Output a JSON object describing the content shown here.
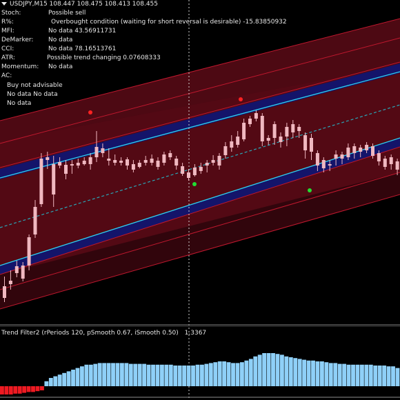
{
  "window": {
    "symbol_line": "USDJPY,M15  108.447 108.475 108.413 108.455"
  },
  "signals": [
    {
      "label": "Stoch:",
      "value": "Possible sell"
    },
    {
      "label": "R%:",
      "value": "Overbought condition (waiting for short reversal is desirable) -15.83850932"
    },
    {
      "label": "MFI:",
      "value": "No data 43.56911731"
    },
    {
      "label": "DeMarker:",
      "value": "No data"
    },
    {
      "label": "CCI:",
      "value": "No data 78.16513761"
    },
    {
      "label": "ATR:",
      "value": "Possible trend changing 0.07608333"
    },
    {
      "label": "Momentum:",
      "value": "No data"
    },
    {
      "label": "AC:",
      "value": ""
    }
  ],
  "ac_lines": [
    "Buy not advisable",
    "No data No data",
    "No data"
  ],
  "indicator": {
    "label": "Trend Filter2  (rPeriods 120, pSmooth 0.67, iSmooth 0.50)",
    "value": "1.3367"
  },
  "colors": {
    "background": "#000000",
    "bull": "#3aa8e8",
    "bear": "#f0b8c0",
    "channel_outer": "#5a0a16",
    "channel_inner": "#14146a",
    "channel_line_red": "#c0182e",
    "channel_line_cyan": "#2fd2f0",
    "mid_line": "#2aa8b8",
    "hist_pos": "#8fd0f8",
    "hist_neg": "#ee1a22",
    "dot_red": "#ff2222",
    "dot_green": "#22dd33"
  },
  "chart_data": {
    "type": "candlestick",
    "series": [
      {
        "name": "",
        "points": [
          [
            415,
            438,
            401,
            432
          ],
          [
            407,
            420,
            392,
            412
          ],
          [
            386,
            402,
            378,
            396
          ],
          [
            385,
            408,
            380,
            404
          ],
          [
            344,
            392,
            340,
            385
          ],
          [
            300,
            345,
            290,
            340
          ],
          [
            230,
            300,
            222,
            296
          ],
          [
            228,
            245,
            220,
            232
          ],
          [
            238,
            300,
            226,
            282
          ],
          [
            235,
            244,
            228,
            240
          ],
          [
            239,
            260,
            232,
            252
          ],
          [
            238,
            252,
            232,
            240
          ],
          [
            236,
            244,
            230,
            240
          ],
          [
            233,
            240,
            228,
            238
          ],
          [
            228,
            246,
            222,
            238
          ],
          [
            213,
            235,
            190,
            228
          ],
          [
            215,
            228,
            208,
            222
          ],
          [
            230,
            240,
            215,
            233
          ],
          [
            232,
            240,
            224,
            236
          ],
          [
            233,
            240,
            228,
            236
          ],
          [
            231,
            246,
            228,
            240
          ],
          [
            238,
            250,
            232,
            246
          ],
          [
            236,
            244,
            232,
            242
          ],
          [
            232,
            240,
            226,
            236
          ],
          [
            230,
            240,
            224,
            236
          ],
          [
            233,
            246,
            228,
            242
          ],
          [
            224,
            240,
            220,
            236
          ],
          [
            222,
            232,
            218,
            228
          ],
          [
            230,
            246,
            226,
            240
          ],
          [
            241,
            255,
            236,
            252
          ],
          [
            250,
            262,
            245,
            258
          ],
          [
            243,
            256,
            238,
            254
          ],
          [
            242,
            252,
            236,
            248
          ],
          [
            236,
            250,
            232,
            240
          ],
          [
            232,
            240,
            225,
            236
          ],
          [
            226,
            246,
            222,
            240
          ],
          [
            212,
            230,
            206,
            225
          ],
          [
            205,
            220,
            196,
            214
          ],
          [
            198,
            214,
            190,
            210
          ],
          [
            178,
            205,
            172,
            202
          ],
          [
            172,
            184,
            168,
            180
          ],
          [
            164,
            176,
            160,
            172
          ],
          [
            168,
            212,
            164,
            205
          ],
          [
            200,
            210,
            196,
            204
          ],
          [
            180,
            210,
            176,
            200
          ],
          [
            198,
            214,
            192,
            206
          ],
          [
            184,
            212,
            178,
            198
          ],
          [
            180,
            200,
            174,
            192
          ],
          [
            184,
            200,
            180,
            190
          ],
          [
            196,
            230,
            192,
            218
          ],
          [
            200,
            232,
            194,
            220
          ],
          [
            222,
            248,
            218,
            240
          ],
          [
            232,
            250,
            228,
            244
          ],
          [
            238,
            248,
            232,
            240
          ],
          [
            224,
            240,
            218,
            230
          ],
          [
            224,
            238,
            220,
            230
          ],
          [
            214,
            232,
            208,
            228
          ],
          [
            212,
            230,
            208,
            222
          ],
          [
            214,
            228,
            210,
            220
          ],
          [
            210,
            222,
            206,
            218
          ],
          [
            212,
            230,
            208,
            226
          ],
          [
            222,
            240,
            218,
            234
          ],
          [
            230,
            246,
            226,
            242
          ],
          [
            228,
            246,
            224,
            238
          ],
          [
            234,
            254,
            230,
            246
          ]
        ]
      }
    ],
    "histogram": [
      -10,
      -10,
      -10,
      -9,
      -9,
      -8,
      -7,
      -7,
      -6,
      -5,
      6,
      10,
      12,
      14,
      16,
      18,
      20,
      22,
      24,
      26,
      26,
      27,
      28,
      28,
      28,
      28,
      28,
      28,
      28,
      27,
      27,
      27,
      27,
      26,
      26,
      26,
      26,
      26,
      26,
      25,
      25,
      25,
      25,
      25,
      26,
      26,
      27,
      28,
      29,
      30,
      30,
      29,
      28,
      28,
      29,
      31,
      33,
      36,
      38,
      40,
      40,
      40,
      39,
      38,
      36,
      35,
      34,
      33,
      32,
      31,
      31,
      30,
      30,
      29,
      28,
      28,
      27,
      27,
      26,
      26,
      26,
      26,
      26,
      26,
      25,
      25,
      25,
      24,
      24,
      22
    ]
  }
}
